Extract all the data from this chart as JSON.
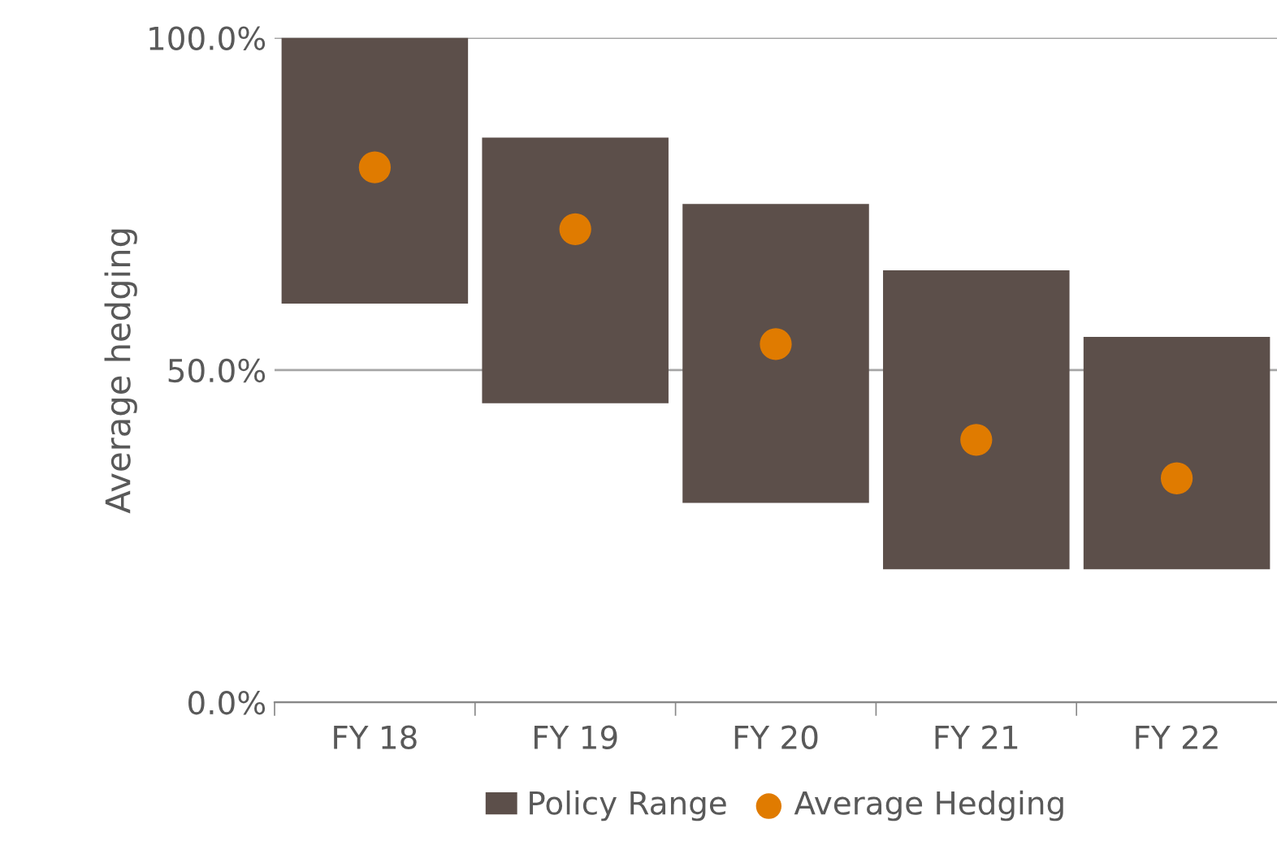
{
  "chart_data": {
    "type": "bar",
    "ylabel": "Average hedging",
    "categories": [
      "FY 18",
      "FY 19",
      "FY 20",
      "FY 21",
      "FY 22"
    ],
    "series": [
      {
        "name": "Policy Range",
        "color": "#5c4f4a",
        "base": [
          60,
          45,
          30,
          20,
          20
        ],
        "values": [
          40,
          40,
          45,
          45,
          35
        ]
      },
      {
        "name": "Average Hedging",
        "type": "scatter",
        "color": "#e07b00",
        "x": [
          "FY 18",
          "FY 19",
          "FY 20",
          "FY 21",
          "FY 22"
        ],
        "values": [
          80.5,
          71.2,
          53.9,
          39.5,
          33.7
        ],
        "marker": "circle"
      }
    ],
    "ylim": [
      0,
      100
    ],
    "yticks": [
      {
        "value": 0,
        "label": "0.0%"
      },
      {
        "value": 50,
        "label": "50.0%"
      },
      {
        "value": 100,
        "label": "100.0%"
      }
    ],
    "grid": "y",
    "legend": "bottom"
  }
}
